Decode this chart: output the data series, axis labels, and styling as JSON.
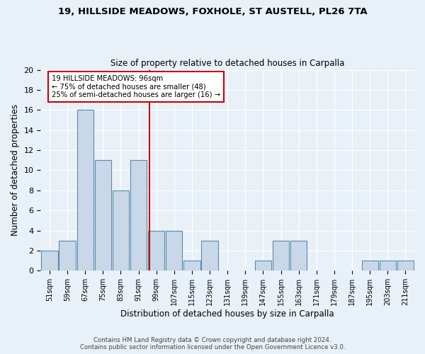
{
  "title1": "19, HILLSIDE MEADOWS, FOXHOLE, ST AUSTELL, PL26 7TA",
  "title2": "Size of property relative to detached houses in Carpalla",
  "xlabel": "Distribution of detached houses by size in Carpalla",
  "ylabel": "Number of detached properties",
  "footnote1": "Contains HM Land Registry data © Crown copyright and database right 2024.",
  "footnote2": "Contains public sector information licensed under the Open Government Licence v3.0.",
  "bin_labels": [
    "51sqm",
    "59sqm",
    "67sqm",
    "75sqm",
    "83sqm",
    "91sqm",
    "99sqm",
    "107sqm",
    "115sqm",
    "123sqm",
    "131sqm",
    "139sqm",
    "147sqm",
    "155sqm",
    "163sqm",
    "171sqm",
    "179sqm",
    "187sqm",
    "195sqm",
    "203sqm",
    "211sqm"
  ],
  "bar_values": [
    2,
    3,
    16,
    11,
    8,
    11,
    4,
    4,
    1,
    3,
    0,
    0,
    1,
    3,
    3,
    0,
    0,
    0,
    1,
    1,
    1
  ],
  "bar_color": "#c8d8e8",
  "bar_edge_color": "#5a8ab0",
  "reference_line_x": 96,
  "annotation_line1": "19 HILLSIDE MEADOWS: 96sqm",
  "annotation_line2": "← 75% of detached houses are smaller (48)",
  "annotation_line3": "25% of semi-detached houses are larger (16) →",
  "annotation_box_color": "#ffffff",
  "annotation_box_edge": "#cc0000",
  "red_line_color": "#cc0000",
  "ylim": [
    0,
    20
  ],
  "yticks": [
    0,
    2,
    4,
    6,
    8,
    10,
    12,
    14,
    16,
    18,
    20
  ],
  "background_color": "#e8f0f8",
  "grid_color": "#ffffff"
}
